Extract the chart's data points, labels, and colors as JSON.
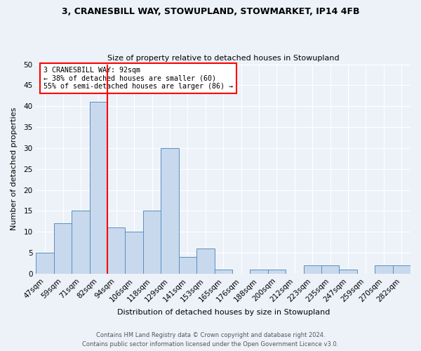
{
  "title": "3, CRANESBILL WAY, STOWUPLAND, STOWMARKET, IP14 4FB",
  "subtitle": "Size of property relative to detached houses in Stowupland",
  "xlabel": "Distribution of detached houses by size in Stowupland",
  "ylabel": "Number of detached properties",
  "bar_labels": [
    "47sqm",
    "59sqm",
    "71sqm",
    "82sqm",
    "94sqm",
    "106sqm",
    "118sqm",
    "129sqm",
    "141sqm",
    "153sqm",
    "165sqm",
    "176sqm",
    "188sqm",
    "200sqm",
    "212sqm",
    "223sqm",
    "235sqm",
    "247sqm",
    "259sqm",
    "270sqm",
    "282sqm"
  ],
  "bar_values": [
    5,
    12,
    15,
    41,
    11,
    10,
    15,
    30,
    4,
    6,
    1,
    0,
    1,
    1,
    0,
    2,
    2,
    1,
    0,
    2,
    2
  ],
  "bar_color": "#c8d9ed",
  "bar_edge_color": "#5a8fc0",
  "annotation_line1": "3 CRANESBILL WAY: 92sqm",
  "annotation_line2": "← 38% of detached houses are smaller (60)",
  "annotation_line3": "55% of semi-detached houses are larger (86) →",
  "vline_index": 4,
  "ylim": [
    0,
    50
  ],
  "yticks": [
    0,
    5,
    10,
    15,
    20,
    25,
    30,
    35,
    40,
    45,
    50
  ],
  "footer_line1": "Contains HM Land Registry data © Crown copyright and database right 2024.",
  "footer_line2": "Contains public sector information licensed under the Open Government Licence v3.0.",
  "background_color": "#edf2f9",
  "plot_bg_color": "#edf2f9",
  "grid_color": "#ffffff"
}
